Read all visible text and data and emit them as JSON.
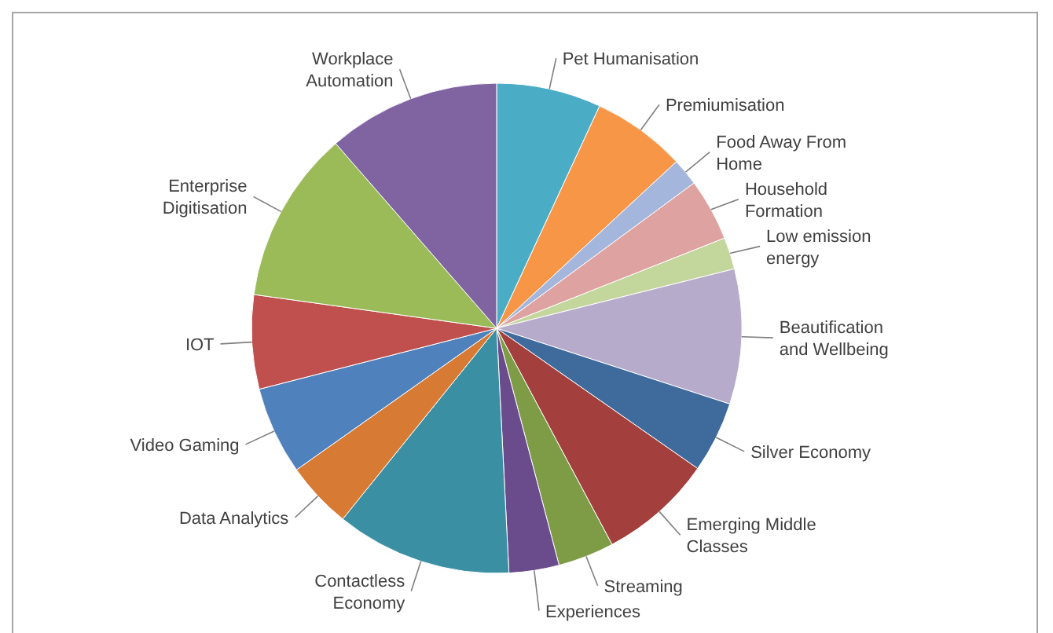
{
  "chart_data": {
    "type": "pie",
    "categories": [
      "Pet Humanisation",
      "Premiumisation",
      "Food Away From Home",
      "Household Formation",
      "Low emission energy",
      "Beautification and Wellbeing",
      "Silver Economy",
      "Emerging Middle Classes",
      "Streaming",
      "Experiences",
      "Contactless Economy",
      "Data Analytics",
      "Video Gaming",
      "IOT",
      "Enterprise Digitisation",
      "Workplace Automation"
    ],
    "values": [
      6.9,
      6.2,
      1.8,
      4.1,
      2.1,
      8.9,
      4.7,
      7.5,
      3.7,
      3.3,
      11.6,
      4.4,
      5.8,
      6.2,
      11.4,
      11.4
    ],
    "colors": [
      "#4bacc6",
      "#f79646",
      "#a5b6dc",
      "#dea2a0",
      "#c3d69b",
      "#b7abcb",
      "#3f6b9c",
      "#a3403d",
      "#7e9b46",
      "#6a4c8c",
      "#3a8fa3",
      "#d77b34",
      "#4f81bd",
      "#c0504d",
      "#9bbb59",
      "#8064a2"
    ]
  }
}
